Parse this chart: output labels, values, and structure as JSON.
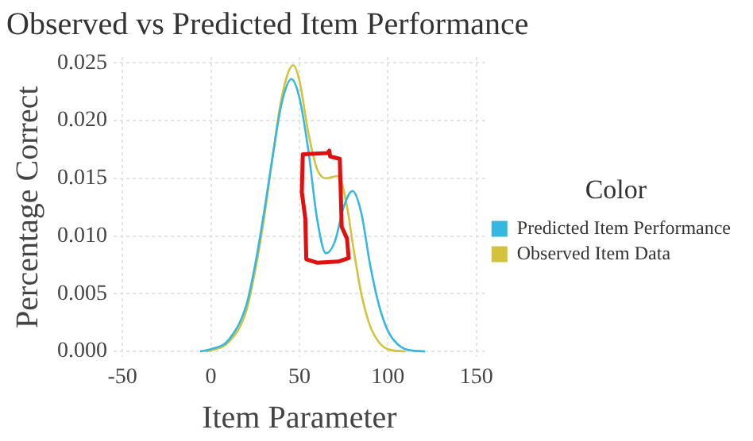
{
  "chart_data": {
    "type": "line",
    "title": "Observed vs Predicted Item Performance",
    "xlabel": "Item Parameter",
    "ylabel": "Percentage Correct",
    "legend_title": "Color",
    "legend": "right",
    "grid": true,
    "marker": "none",
    "line_style": "solid",
    "xlim": [
      -55,
      155
    ],
    "xticks": [
      -50,
      0,
      50,
      100,
      150
    ],
    "ylim": [
      -0.0005,
      0.0255
    ],
    "yticks": [
      {
        "value": 0,
        "label": "0.000"
      },
      0.005,
      {
        "value": 0.01,
        "label": "0.010"
      },
      0.015,
      {
        "value": 0.02,
        "label": "0.020"
      },
      0.025
    ],
    "series": [
      {
        "name": "Predicted Item Performance",
        "color": "#35b8e0",
        "x": [
          -6,
          0,
          10,
          20,
          25,
          30,
          35,
          40,
          45.5,
          50,
          55,
          60,
          65,
          70,
          75,
          80,
          85,
          90,
          95,
          100,
          105,
          110,
          121
        ],
        "values": [
          0,
          0.0002,
          0.001,
          0.004,
          0.0075,
          0.012,
          0.017,
          0.0215,
          0.0236,
          0.022,
          0.0175,
          0.0115,
          0.0085,
          0.0095,
          0.0125,
          0.0139,
          0.012,
          0.0075,
          0.004,
          0.0018,
          0.0007,
          0.0002,
          0
        ]
      },
      {
        "name": "Observed Item Data",
        "color": "#d4c23a",
        "x": [
          -3,
          0,
          10,
          20,
          25,
          30,
          35,
          40,
          46.5,
          50,
          55,
          60,
          65,
          72,
          77,
          80,
          85,
          90,
          95,
          100,
          110
        ],
        "values": [
          0,
          0.0001,
          0.0008,
          0.0035,
          0.007,
          0.0115,
          0.017,
          0.022,
          0.0248,
          0.0235,
          0.019,
          0.0158,
          0.015,
          0.0152,
          0.0125,
          0.0095,
          0.005,
          0.0022,
          0.0008,
          0.0002,
          0
        ]
      }
    ]
  }
}
